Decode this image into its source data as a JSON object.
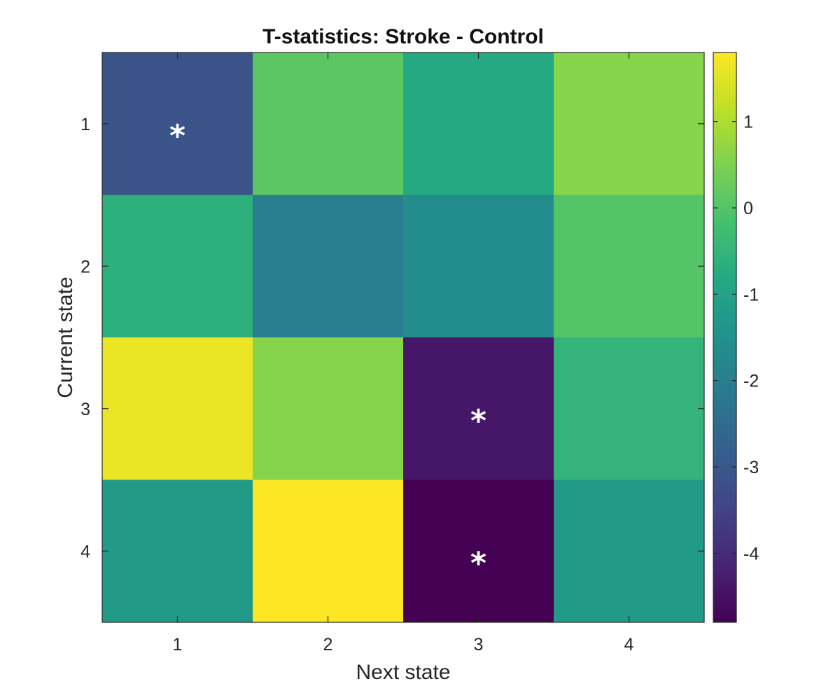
{
  "chart_data": {
    "type": "heatmap",
    "title": "T-statistics: Stroke - Control",
    "xlabel": "Next state",
    "ylabel": "Current state",
    "x_categories": [
      "1",
      "2",
      "3",
      "4"
    ],
    "y_categories": [
      "1",
      "2",
      "3",
      "4"
    ],
    "values": [
      [
        -3.1,
        0.1,
        -0.8,
        0.6
      ],
      [
        -0.6,
        -2.0,
        -1.6,
        0.0
      ],
      [
        1.6,
        0.6,
        -4.4,
        -0.5
      ],
      [
        -1.2,
        1.8,
        -4.8,
        -1.2
      ]
    ],
    "significant_marker": "*",
    "significant": [
      [
        true,
        false,
        false,
        false
      ],
      [
        false,
        false,
        false,
        false
      ],
      [
        false,
        false,
        true,
        false
      ],
      [
        false,
        false,
        true,
        false
      ]
    ],
    "colormap": "viridis",
    "clim": [
      -4.8,
      1.8
    ],
    "colorbar": {
      "ticks": [
        1,
        0,
        -1,
        -2,
        -3,
        -4
      ],
      "tick_labels": [
        "1",
        "0",
        "-1",
        "-2",
        "-3",
        "-4"
      ]
    }
  }
}
